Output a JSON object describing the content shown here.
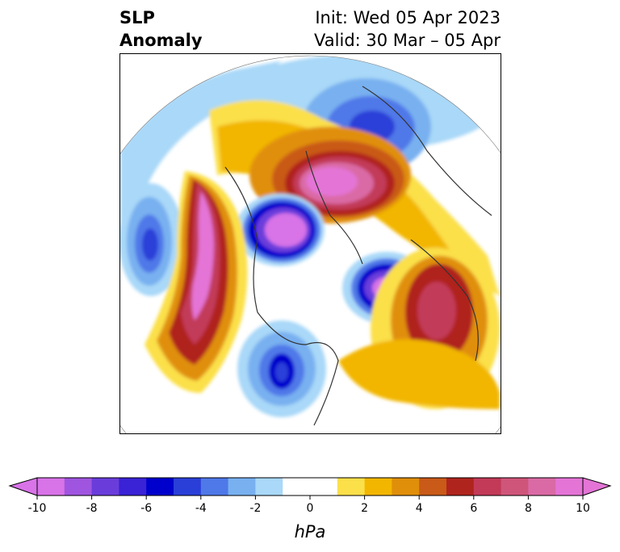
{
  "header": {
    "variable": "SLP",
    "variable_line2": "Anomaly",
    "init": "Init: Wed 05 Apr 2023",
    "valid": "Valid: 30 Mar – 05 Apr"
  },
  "map": {
    "projection": "north-polar-stereographic",
    "field": "sea level pressure anomaly"
  },
  "colorbar": {
    "unit": "hPa",
    "range": [
      -10,
      10
    ],
    "extend": "both",
    "ticks": [
      "-10",
      "-8",
      "-6",
      "-4",
      "-2",
      "0",
      "2",
      "4",
      "6",
      "8",
      "10"
    ],
    "colors": [
      "#d873e8",
      "#9f55e0",
      "#6a3ddb",
      "#3a22d6",
      "#0000cc",
      "#2a3fd8",
      "#4f78e8",
      "#78b0f0",
      "#a9d8f8",
      "#ffffff",
      "#ffffff",
      "#fbe04a",
      "#f2b600",
      "#e08f0a",
      "#c95a18",
      "#b0241e",
      "#c23a58",
      "#d0557a",
      "#da6aa5",
      "#e474d6"
    ]
  }
}
